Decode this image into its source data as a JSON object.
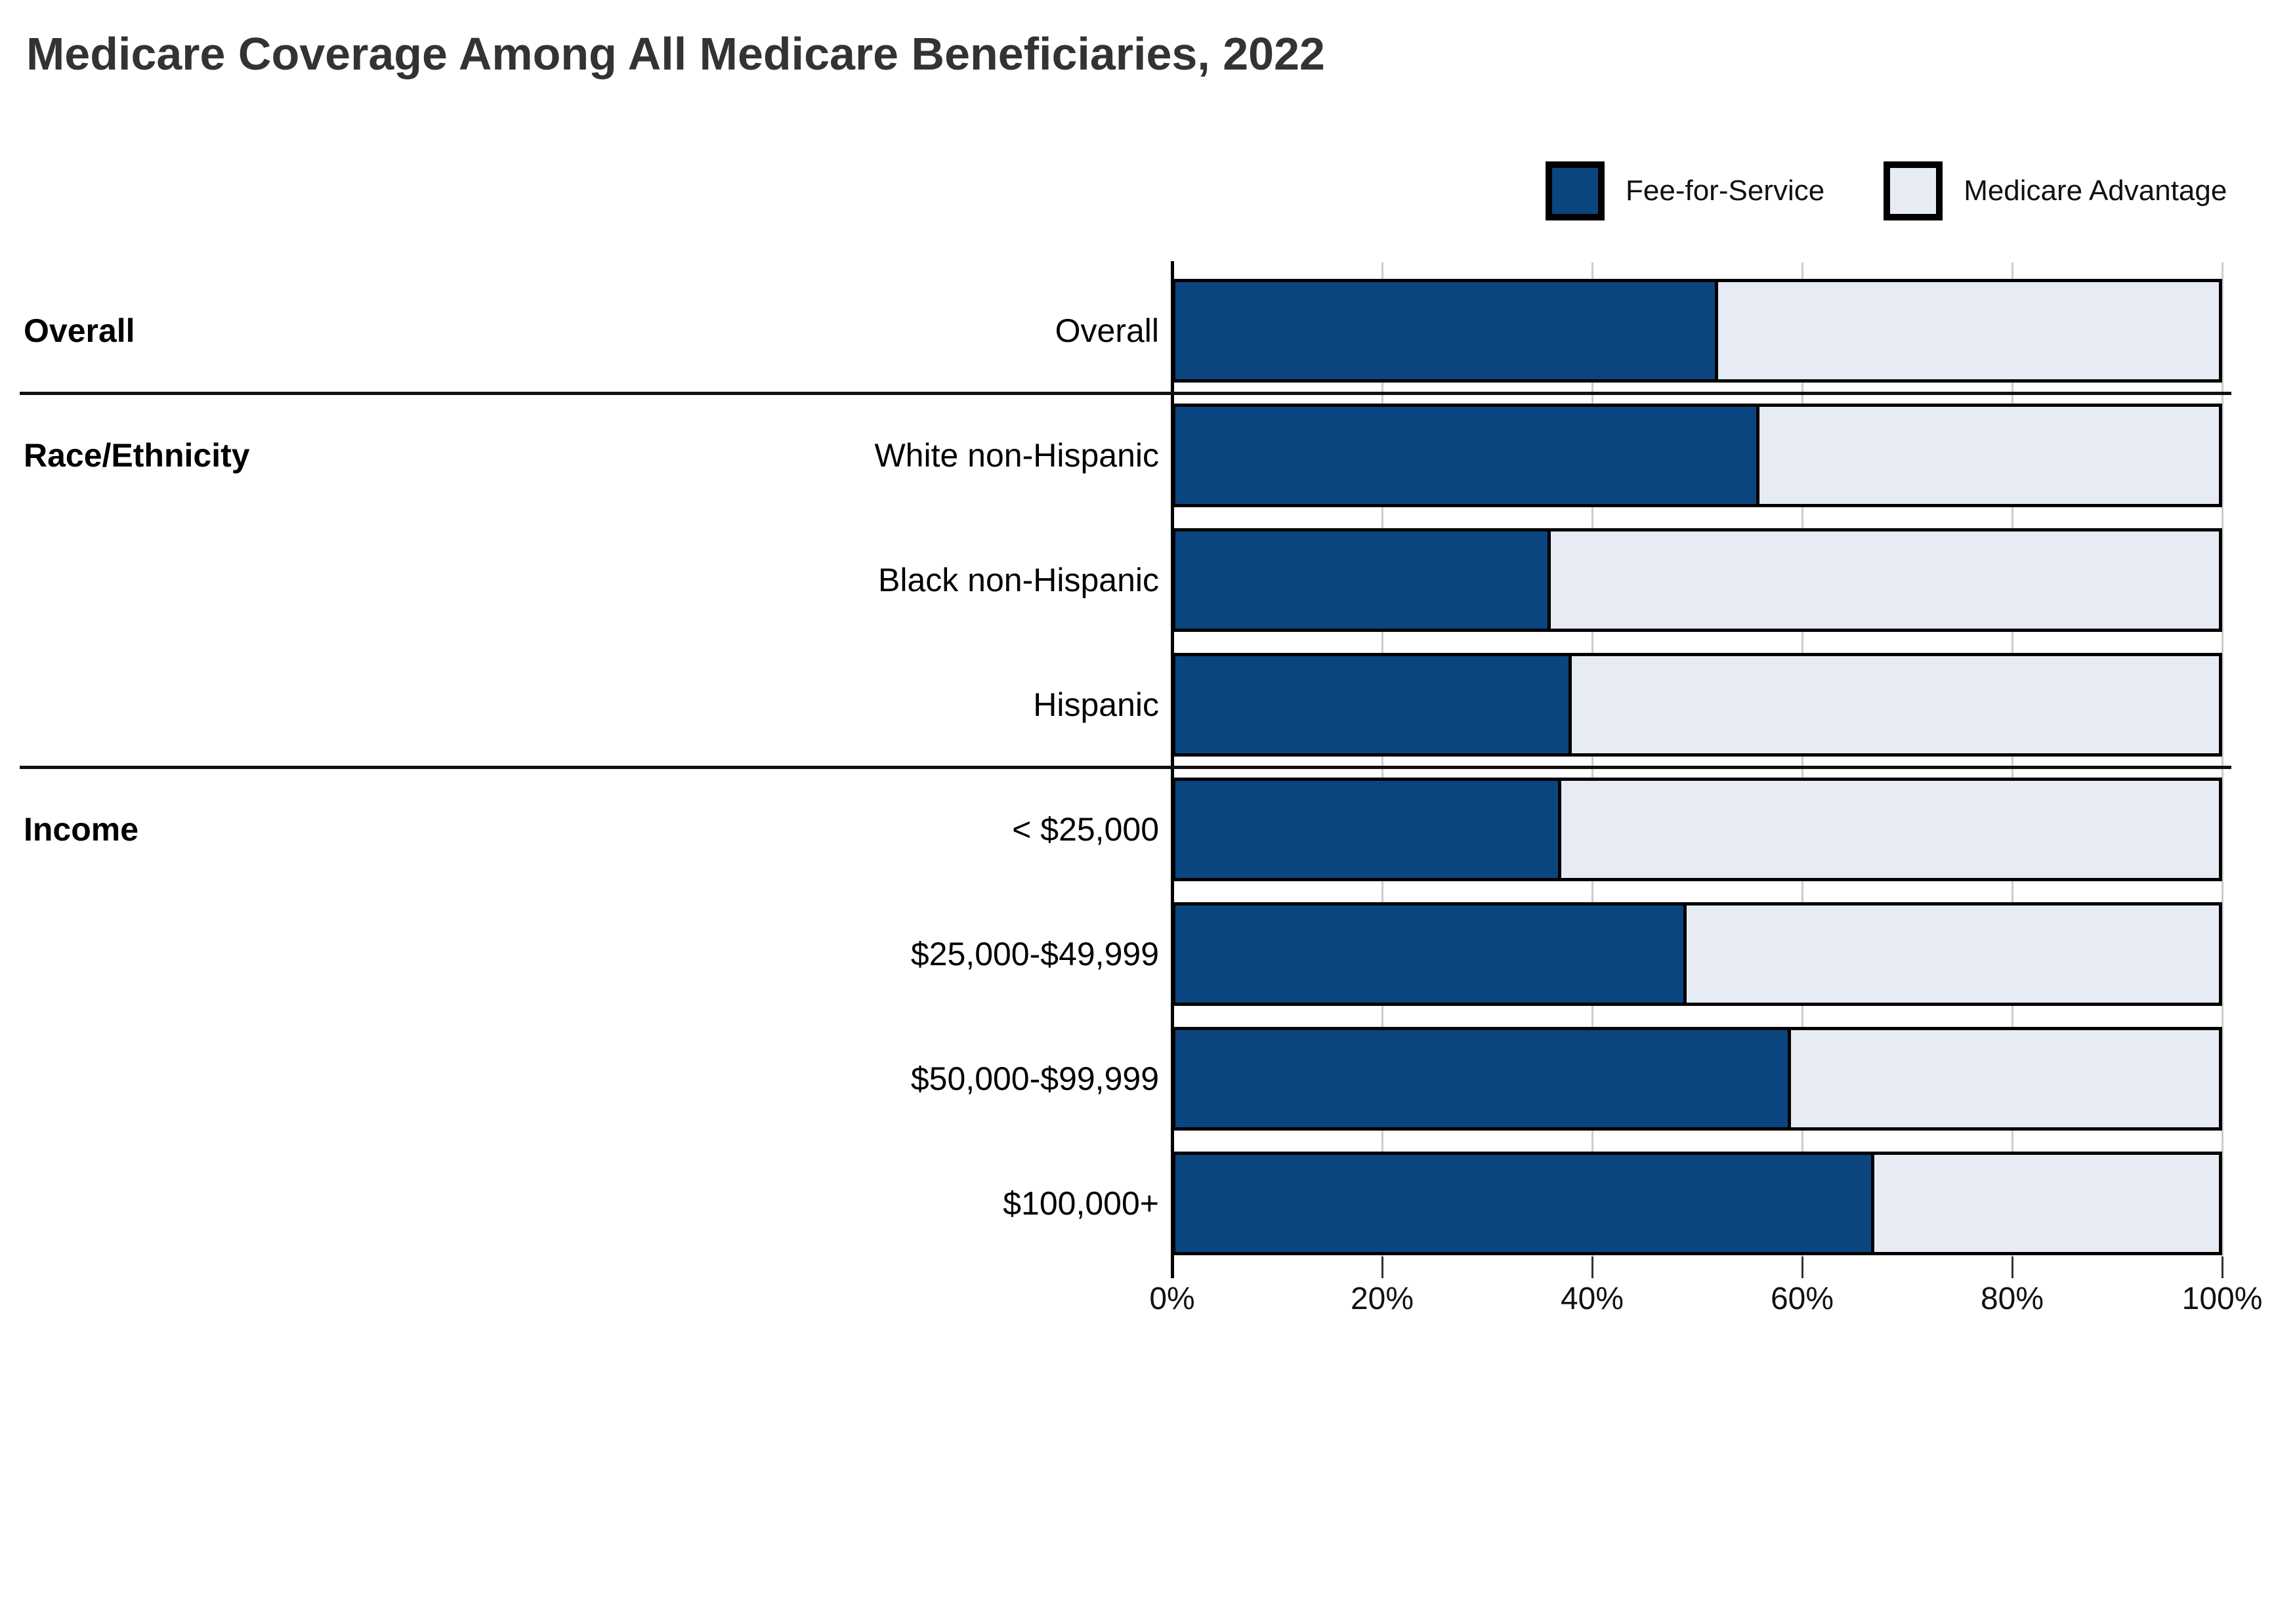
{
  "title": "Medicare Coverage Among All Medicare Beneficiaries, 2022",
  "colors": {
    "fee_for_service": "#0A4580",
    "medicare_advantage": "#E7EBF3",
    "bar_border": "#000000",
    "gridline": "#CCCCCC",
    "separator": "#111111",
    "title_text": "#333333"
  },
  "legend": {
    "position": "top-right",
    "items": [
      {
        "label": "Fee-for-Service",
        "color": "#0A4580"
      },
      {
        "label": "Medicare Advantage",
        "color": "#E7EBF3"
      }
    ]
  },
  "chart_data": {
    "type": "bar",
    "orientation": "horizontal-stacked",
    "title": "Medicare Coverage Among All Medicare Beneficiaries, 2022",
    "xlabel": "",
    "ylabel": "",
    "xlim": [
      0,
      100
    ],
    "x_tick_labels": [
      "0%",
      "20%",
      "40%",
      "60%",
      "80%",
      "100%"
    ],
    "grid": "vertical-light",
    "legend_position": "top-right",
    "groups": [
      {
        "label": "Overall",
        "rows": [
          "Overall"
        ]
      },
      {
        "label": "Race/Ethnicity",
        "rows": [
          "White non-Hispanic",
          "Black non-Hispanic",
          "Hispanic"
        ]
      },
      {
        "label": "Income",
        "rows": [
          "< $25,000",
          "$25,000-$49,999",
          "$50,000-$99,999",
          "$100,000+"
        ]
      }
    ],
    "categories": [
      "Overall",
      "White non-Hispanic",
      "Black non-Hispanic",
      "Hispanic",
      "< $25,000",
      "$25,000-$49,999",
      "$50,000-$99,999",
      "$100,000+"
    ],
    "series": [
      {
        "name": "Fee-for-Service",
        "color": "#0A4580",
        "values": [
          52,
          56,
          36,
          38,
          37,
          49,
          59,
          67
        ]
      },
      {
        "name": "Medicare Advantage",
        "color": "#E7EBF3",
        "values": [
          48,
          44,
          64,
          62,
          63,
          51,
          41,
          33
        ]
      }
    ]
  }
}
